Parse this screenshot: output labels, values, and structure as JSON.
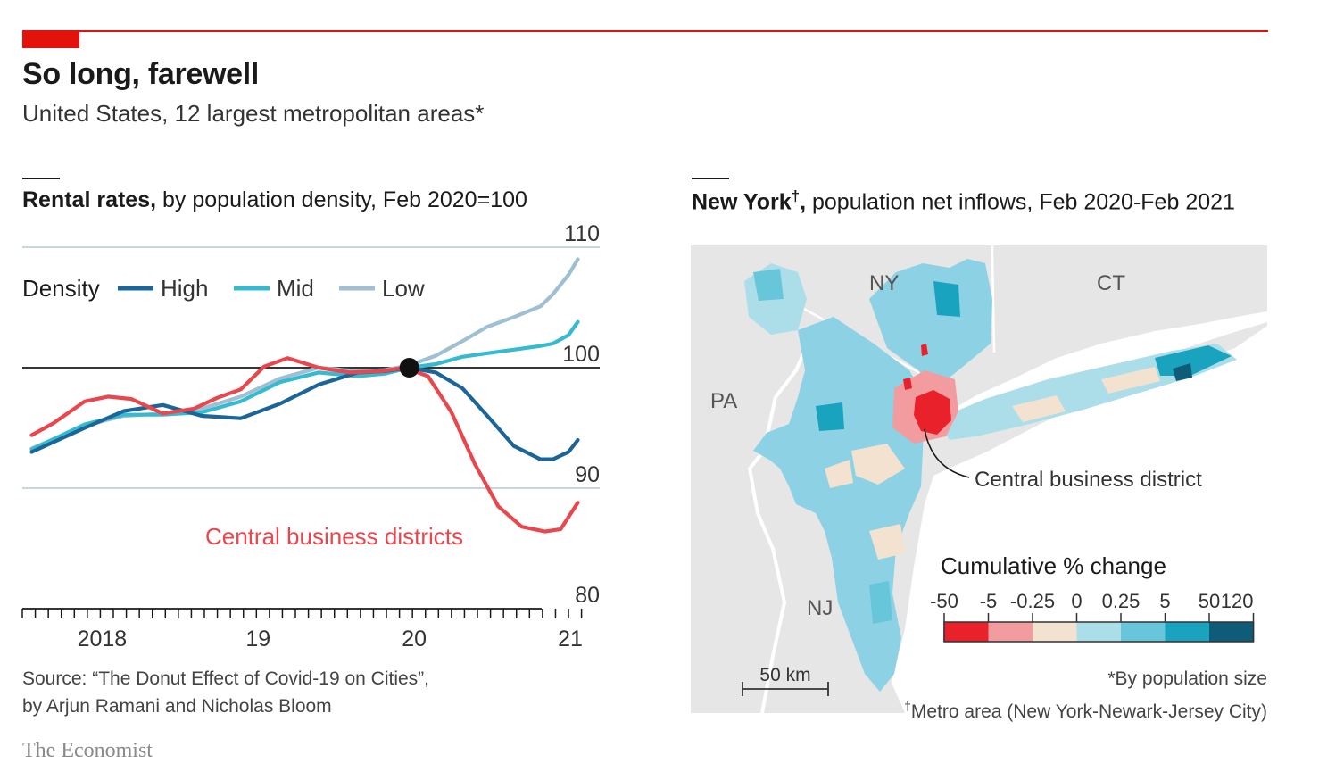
{
  "header": {
    "title": "So long, farewell",
    "subtitle": "United States, 12 largest metropolitan areas*"
  },
  "left_panel": {
    "title_bold": "Rental rates,",
    "title_rest": " by population density, Feb 2020=100",
    "source_line1": "Source: “The Donut Effect of Covid-19 on Cities”,",
    "source_line2": "by Arjun Ramani and Nicholas Bloom"
  },
  "right_panel": {
    "title_bold": "New York",
    "title_dagger": "†",
    "title_comma": ",",
    "title_rest": " population net inflows, Feb 2020-Feb 2021",
    "labels": {
      "ny": "NY",
      "ct": "CT",
      "pa": "PA",
      "nj": "NJ"
    },
    "annotation": "Central business district",
    "scale": "50 km",
    "note1": "*By population size",
    "note2_dagger": "†",
    "note2": "Metro area (New York-Newark-Jersey City)",
    "legend": {
      "title": "Cumulative % change",
      "ticks": [
        "-50",
        "-5",
        "-0.25",
        "0",
        "0.25",
        "5",
        "50",
        "120"
      ],
      "colors": [
        "#e8212b",
        "#f29c9f",
        "#f3e2cf",
        "#acdeea",
        "#68c6db",
        "#1aa3bf",
        "#0f5c78"
      ]
    }
  },
  "brand": "The Economist",
  "colors": {
    "accent_red": "#e3120b",
    "high": "#1b6599",
    "mid": "#35bad0",
    "low": "#9fbfd3",
    "cbd": "#e8474e",
    "map_land": "#e6e6e6",
    "map_water": "#ffffff"
  },
  "chart_data": {
    "type": "line",
    "title": "Rental rates",
    "subtitle": "by population density, Feb 2020=100",
    "ylim": [
      80,
      110
    ],
    "yticks": [
      80,
      90,
      100,
      110
    ],
    "xlim": [
      2017.6,
      2021.3
    ],
    "xtick_labels": [
      {
        "x": 2018.0,
        "label": "2018"
      },
      {
        "x": 2019.0,
        "label": "19"
      },
      {
        "x": 2020.0,
        "label": "20"
      },
      {
        "x": 2021.0,
        "label": "21"
      }
    ],
    "reference_line": 100,
    "reference_point": {
      "x": 2020.08,
      "y": 100
    },
    "legend_title": "Density",
    "series": [
      {
        "name": "High",
        "color": "#1b6599",
        "x": [
          2017.66,
          2018.0,
          2018.25,
          2018.5,
          2018.75,
          2019.0,
          2019.25,
          2019.5,
          2019.75,
          2019.92,
          2020.08,
          2020.25,
          2020.42,
          2020.58,
          2020.75,
          2020.92,
          2021.0,
          2021.1,
          2021.16
        ],
        "y": [
          93.0,
          95.0,
          96.4,
          96.9,
          96.0,
          95.8,
          97.0,
          98.6,
          99.6,
          99.7,
          100.0,
          99.6,
          98.3,
          96.0,
          93.5,
          92.4,
          92.4,
          93.0,
          94.0
        ]
      },
      {
        "name": "Mid",
        "color": "#35bad0",
        "x": [
          2017.66,
          2018.0,
          2018.25,
          2018.5,
          2018.75,
          2019.0,
          2019.25,
          2019.5,
          2019.75,
          2019.92,
          2020.08,
          2020.25,
          2020.42,
          2020.58,
          2020.75,
          2020.92,
          2021.0,
          2021.1,
          2021.16
        ],
        "y": [
          93.2,
          95.3,
          96.1,
          96.1,
          96.3,
          97.2,
          98.8,
          99.6,
          99.3,
          99.5,
          100.0,
          100.3,
          100.9,
          101.2,
          101.5,
          101.8,
          102.0,
          102.7,
          103.8
        ]
      },
      {
        "name": "Low",
        "color": "#9fbfd3",
        "x": [
          2017.66,
          2018.0,
          2018.25,
          2018.5,
          2018.75,
          2019.0,
          2019.25,
          2019.5,
          2019.75,
          2019.92,
          2020.08,
          2020.25,
          2020.42,
          2020.58,
          2020.75,
          2020.92,
          2021.0,
          2021.1,
          2021.16
        ],
        "y": [
          93.3,
          95.2,
          96.0,
          96.2,
          96.6,
          97.6,
          99.1,
          100.0,
          99.7,
          99.8,
          100.2,
          101.0,
          102.2,
          103.4,
          104.2,
          105.1,
          106.1,
          107.7,
          109.0
        ]
      },
      {
        "name": "Central business districts",
        "color": "#e8474e",
        "x": [
          2017.66,
          2017.8,
          2018.0,
          2018.15,
          2018.3,
          2018.5,
          2018.7,
          2018.85,
          2019.0,
          2019.15,
          2019.3,
          2019.5,
          2019.7,
          2019.9,
          2020.05,
          2020.2,
          2020.35,
          2020.5,
          2020.65,
          2020.8,
          2020.95,
          2021.05,
          2021.16
        ],
        "y": [
          94.4,
          95.4,
          97.2,
          97.6,
          97.4,
          96.2,
          96.6,
          97.5,
          98.2,
          100.1,
          100.8,
          100.0,
          99.6,
          99.7,
          100.0,
          99.3,
          96.3,
          92.0,
          88.5,
          86.8,
          86.4,
          86.6,
          88.8
        ]
      }
    ]
  }
}
